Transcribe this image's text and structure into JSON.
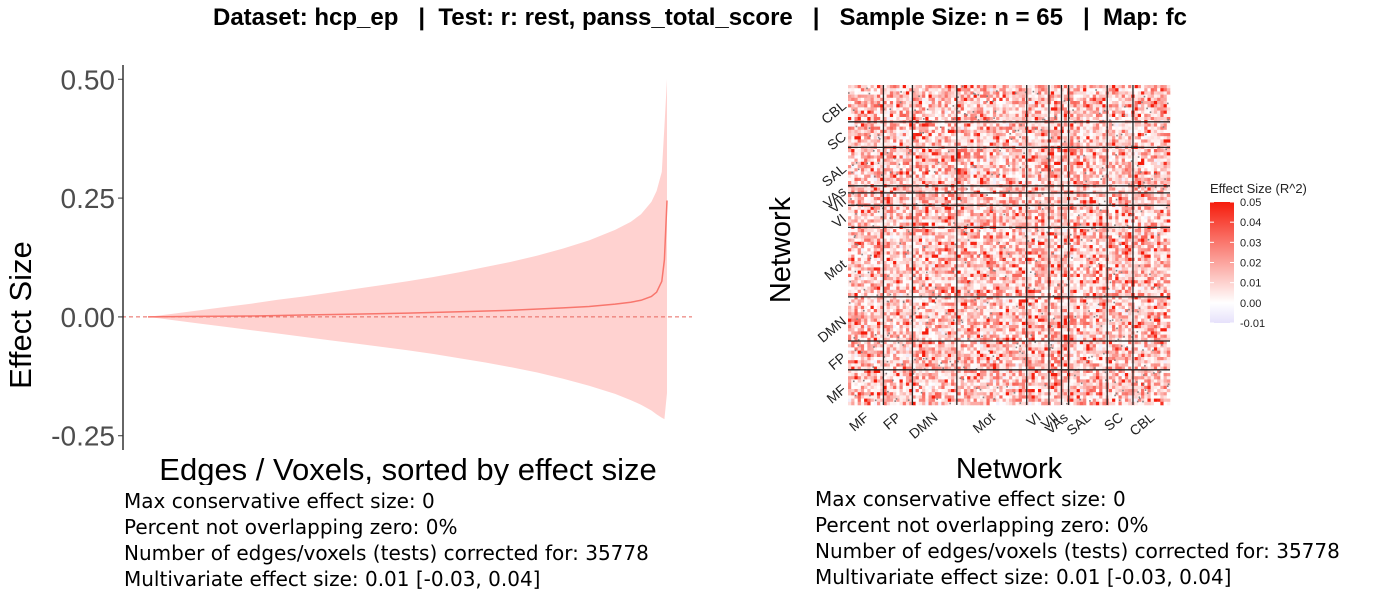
{
  "title": "Dataset: hcp_ep   |  Test: r: rest, panss_total_score   |   Sample Size: n = 65   |  Map: fc",
  "chart_data": [
    {
      "type": "area",
      "xlabel": "Edges / Voxels, sorted by effect size",
      "ylabel": "Effect Size",
      "ylim": [
        -0.28,
        0.53
      ],
      "y_ticks": [
        "0.50",
        "0.25",
        "0.00",
        "-0.25"
      ],
      "y_tick_values": [
        0.5,
        0.25,
        0,
        -0.25
      ],
      "reference_line": 0,
      "grid": false,
      "series": [
        {
          "role": "band",
          "x": [
            0,
            0.05,
            0.1,
            0.15,
            0.2,
            0.25,
            0.3,
            0.35,
            0.4,
            0.45,
            0.5,
            0.55,
            0.6,
            0.65,
            0.7,
            0.75,
            0.8,
            0.85,
            0.9,
            0.93,
            0.95,
            0.97,
            0.98,
            0.99,
            0.995,
            1.0
          ],
          "upper": [
            0.0,
            0.007,
            0.014,
            0.021,
            0.028,
            0.036,
            0.043,
            0.051,
            0.059,
            0.067,
            0.075,
            0.084,
            0.094,
            0.105,
            0.116,
            0.129,
            0.144,
            0.161,
            0.183,
            0.2,
            0.216,
            0.242,
            0.265,
            0.305,
            0.4,
            0.5
          ],
          "lower": [
            0.0,
            -0.007,
            -0.014,
            -0.021,
            -0.028,
            -0.035,
            -0.042,
            -0.049,
            -0.056,
            -0.063,
            -0.07,
            -0.078,
            -0.087,
            -0.096,
            -0.106,
            -0.117,
            -0.13,
            -0.145,
            -0.162,
            -0.175,
            -0.185,
            -0.197,
            -0.205,
            -0.212,
            -0.215,
            -0.16
          ]
        },
        {
          "role": "line",
          "x": [
            0,
            0.1,
            0.2,
            0.3,
            0.4,
            0.5,
            0.6,
            0.7,
            0.8,
            0.85,
            0.9,
            0.93,
            0.95,
            0.97,
            0.98,
            0.99,
            0.995,
            1.0
          ],
          "values": [
            0.0,
            0.001,
            0.002,
            0.004,
            0.006,
            0.008,
            0.011,
            0.014,
            0.019,
            0.022,
            0.027,
            0.031,
            0.035,
            0.043,
            0.052,
            0.075,
            0.12,
            0.245
          ]
        }
      ],
      "colors": {
        "band": "#ffd2d0",
        "line": "#f8766d",
        "reference": "#e8665d"
      }
    },
    {
      "type": "heatmap",
      "xlabel": "Network",
      "ylabel": "Network",
      "x_ticks": [
        "MF",
        "FP",
        "DMN",
        "Mot",
        "VI",
        "VII",
        "VAs",
        "SAL",
        "SC",
        "CBL"
      ],
      "y_ticks": [
        "MF",
        "FP",
        "DMN",
        "Mot",
        "VI",
        "VII",
        "VAs",
        "SAL",
        "SC",
        "CBL"
      ],
      "network_boundaries": [
        0.11,
        0.2,
        0.338,
        0.555,
        0.624,
        0.663,
        0.685,
        0.805,
        0.885
      ],
      "legend": {
        "title": "Effect Size (R^2)",
        "ticks": [
          "0.05",
          "0.04",
          "0.03",
          "0.02",
          "0.01",
          "0.00",
          "-0.01"
        ],
        "range": [
          -0.01,
          0.05
        ],
        "colors": {
          "low": "#e6e1fb",
          "mid": "#ffffff",
          "high": "#f61c0c"
        },
        "position": "right"
      }
    }
  ],
  "stats_left": [
    "Max conservative effect size: 0",
    "Percent not overlapping zero: 0%",
    "Number of edges/voxels (tests) corrected for: 35778",
    "Multivariate effect size: 0.01 [-0.03, 0.04]"
  ],
  "stats_right": [
    "Max conservative effect size: 0",
    "Percent not overlapping zero: 0%",
    "Number of edges/voxels (tests) corrected for: 35778",
    "Multivariate effect size: 0.01 [-0.03, 0.04]"
  ]
}
